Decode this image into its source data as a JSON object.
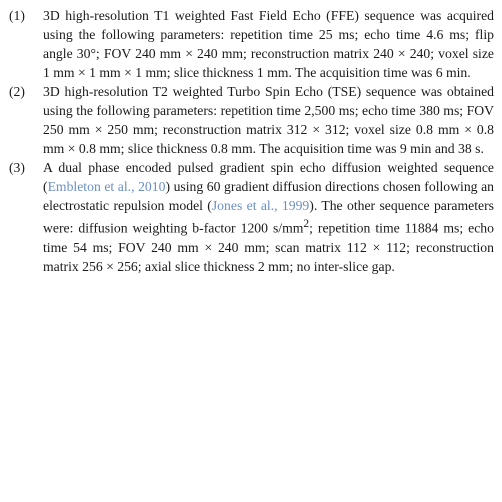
{
  "items": [
    {
      "number": "(1)",
      "text": "3D high-resolution T1 weighted Fast Field Echo (FFE) sequence was acquired using the following parameters: repetition time 25 ms; echo time 4.6 ms; flip angle 30°; FOV 240 mm × 240 mm; reconstruction matrix 240 × 240; voxel size 1 mm × 1 mm × 1 mm; slice thickness 1 mm. The acquisition time was 6 min."
    },
    {
      "number": "(2)",
      "text": "3D high-resolution T2 weighted Turbo Spin Echo (TSE) sequence was obtained using the following parameters: repetition time 2,500 ms; echo time 380 ms; FOV 250 mm × 250 mm; reconstruction matrix 312 × 312; voxel size 0.8 mm × 0.8 mm × 0.8 mm; slice thickness 0.8 mm. The acquisition time was 9 min and 38 s."
    },
    {
      "number": "(3)",
      "text_a": "A dual phase encoded pulsed gradient spin echo diffusion weighted sequence (",
      "cite_a": "Embleton et al., 2010",
      "text_b": ") using 60 gradient diffusion directions chosen following an electrostatic repulsion model (",
      "cite_b": "Jones et al., 1999",
      "text_c": "). The other sequence parameters were: diffusion weighting b-factor 1200 s/mm",
      "sup": "2",
      "text_d": "; repetition time 11884 ms; echo time 54 ms; FOV 240 mm × 240 mm; scan matrix 112 × 112; reconstruction matrix 256 × 256; axial slice thickness 2 mm; no inter-slice gap."
    }
  ]
}
